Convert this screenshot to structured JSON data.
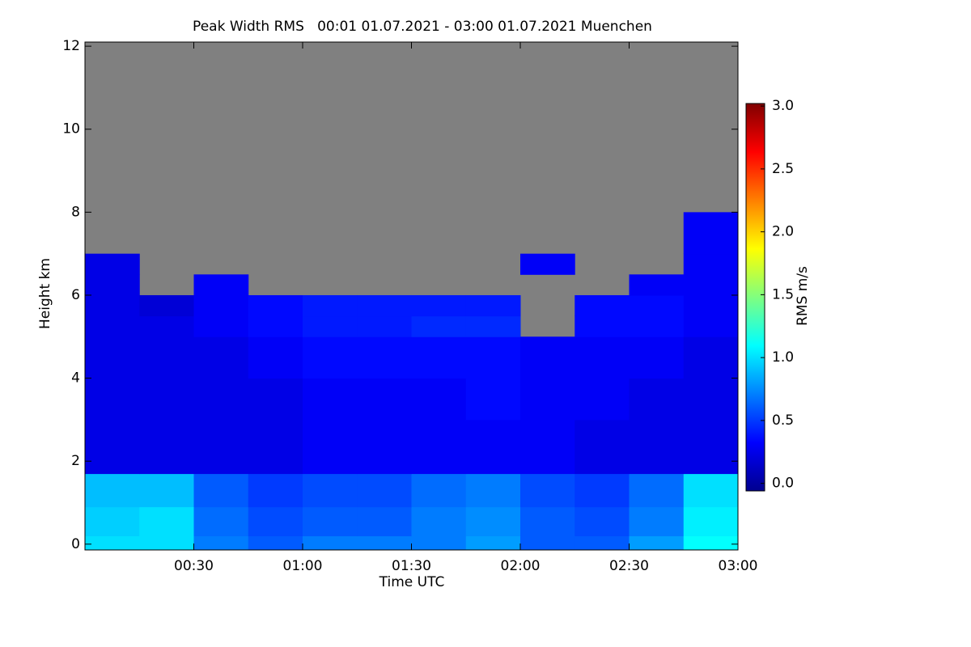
{
  "chart_data": {
    "type": "heatmap",
    "title": "Peak Width RMS   00:01 01.07.2021 - 03:00 01.07.2021 Muenchen",
    "x_label": "Time UTC",
    "y_label": "Height km",
    "colorbar_label": "RMS m/s",
    "xlim": [
      0,
      180
    ],
    "ylim": [
      -0.14,
      12.1
    ],
    "xticks": [
      {
        "value": 30,
        "label": "00:30"
      },
      {
        "value": 60,
        "label": "01:00"
      },
      {
        "value": 90,
        "label": "01:30"
      },
      {
        "value": 120,
        "label": "02:00"
      },
      {
        "value": 150,
        "label": "02:30"
      },
      {
        "value": 180,
        "label": "03:00"
      }
    ],
    "yticks": [
      0,
      2,
      4,
      6,
      8,
      10,
      12
    ],
    "clim": [
      -0.06,
      3.02
    ],
    "cticks": [
      {
        "value": 0,
        "label": "0.0"
      },
      0.5,
      {
        "value": 1,
        "label": "1.0"
      },
      1.5,
      {
        "value": 2,
        "label": "2.0"
      },
      2.5,
      {
        "value": 3,
        "label": "3.0"
      }
    ],
    "colormap": "jet",
    "missing_color": "#808080",
    "x_edges": [
      0,
      15,
      30,
      45,
      60,
      75,
      90,
      105,
      120,
      135,
      150,
      165,
      180
    ],
    "y_edges": [
      0,
      0.2,
      0.9,
      1.7,
      3,
      4,
      5,
      5.5,
      6,
      6.5,
      7,
      8,
      12
    ],
    "z": [
      [
        1.0,
        1.0,
        0.7,
        0.6,
        0.7,
        0.7,
        0.7,
        0.8,
        0.6,
        0.6,
        0.8,
        1.1
      ],
      [
        0.95,
        1.0,
        0.65,
        0.55,
        0.6,
        0.6,
        0.7,
        0.75,
        0.6,
        0.55,
        0.7,
        1.05
      ],
      [
        0.9,
        0.9,
        0.6,
        0.5,
        0.55,
        0.55,
        0.65,
        0.7,
        0.55,
        0.5,
        0.65,
        1.0
      ],
      [
        0.25,
        0.25,
        0.25,
        0.25,
        0.3,
        0.3,
        0.3,
        0.3,
        0.3,
        0.25,
        0.25,
        0.25
      ],
      [
        0.25,
        0.25,
        0.25,
        0.25,
        0.3,
        0.3,
        0.3,
        0.35,
        0.3,
        0.3,
        0.25,
        0.25
      ],
      [
        0.25,
        0.25,
        0.25,
        0.3,
        0.35,
        0.35,
        0.35,
        0.35,
        0.3,
        0.3,
        0.3,
        0.25
      ],
      [
        0.25,
        0.25,
        0.3,
        0.35,
        0.4,
        0.4,
        0.45,
        0.45,
        null,
        0.35,
        0.35,
        0.3
      ],
      [
        0.25,
        0.2,
        0.3,
        0.35,
        0.4,
        0.4,
        0.4,
        0.4,
        null,
        0.35,
        0.35,
        0.3
      ],
      [
        0.25,
        null,
        0.3,
        null,
        null,
        null,
        null,
        null,
        null,
        null,
        0.3,
        0.3
      ],
      [
        0.25,
        null,
        null,
        null,
        null,
        null,
        null,
        null,
        0.3,
        null,
        null,
        0.3
      ],
      [
        null,
        null,
        null,
        null,
        null,
        null,
        null,
        null,
        null,
        null,
        null,
        0.3
      ],
      [
        null,
        null,
        null,
        null,
        null,
        null,
        null,
        null,
        null,
        null,
        null,
        null
      ]
    ]
  }
}
